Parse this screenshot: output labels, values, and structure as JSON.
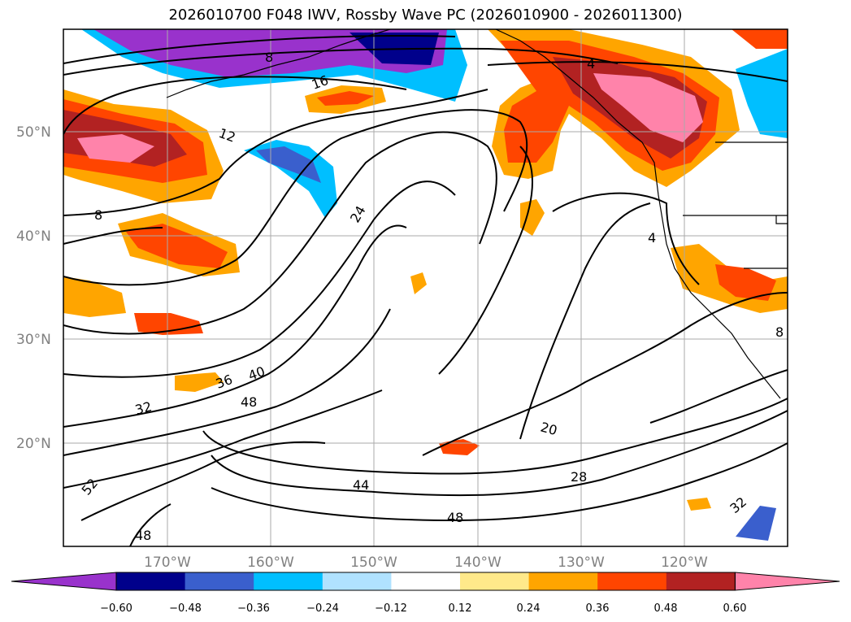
{
  "title": "2026010700 F048 IWV, Rossby Wave PC (2026010900 - 2026011300)",
  "map": {
    "lat_labels": [
      "50°N",
      "40°N",
      "30°N",
      "20°N"
    ],
    "lat_values": [
      50,
      40,
      30,
      20
    ],
    "lon_labels": [
      "170°W",
      "160°W",
      "150°W",
      "140°W",
      "130°W",
      "120°W"
    ],
    "lon_values": [
      -170,
      -160,
      -150,
      -140,
      -130,
      -120
    ],
    "lat_range": [
      10,
      60
    ],
    "lon_range": [
      -180,
      -110
    ],
    "contour_labels": [
      "8",
      "16",
      "12",
      "8",
      "24",
      "4",
      "4",
      "36",
      "40",
      "48",
      "32",
      "20",
      "28",
      "44",
      "48",
      "52",
      "48",
      "32",
      "8"
    ]
  },
  "colorbar": {
    "extend": "both",
    "ticks": [
      "−0.60",
      "−0.48",
      "−0.36",
      "−0.24",
      "−0.12",
      "0.12",
      "0.24",
      "0.36",
      "0.48",
      "0.60"
    ],
    "colors": [
      "#9932cc",
      "#00008b",
      "#3a5fcd",
      "#00bfff",
      "#b0e2ff",
      "#ffffff",
      "#ffe98a",
      "#ffa500",
      "#ff4500",
      "#b22222",
      "#ff83aa"
    ]
  }
}
